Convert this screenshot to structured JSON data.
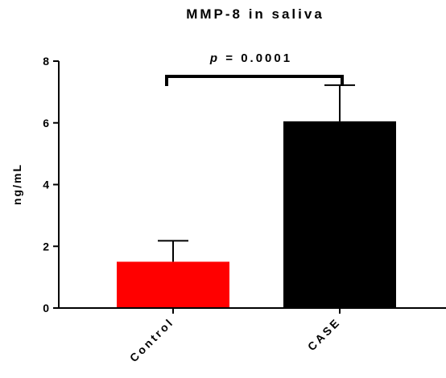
{
  "chart_data": {
    "type": "bar",
    "title": "MMP-8 in saliva",
    "xlabel": "",
    "ylabel": "ng/mL",
    "ylim": [
      0,
      8
    ],
    "yticks": [
      0,
      2,
      4,
      6,
      8
    ],
    "categories": [
      "Control",
      "CASE"
    ],
    "values": [
      1.5,
      6.05
    ],
    "error_upper": [
      0.68,
      1.17
    ],
    "colors": [
      "#ff0000",
      "#000000"
    ],
    "annotation": {
      "p_symbol": "p",
      "text": " = 0.0001",
      "between": [
        "Control",
        "CASE"
      ]
    },
    "grid": false,
    "legend": "none"
  }
}
